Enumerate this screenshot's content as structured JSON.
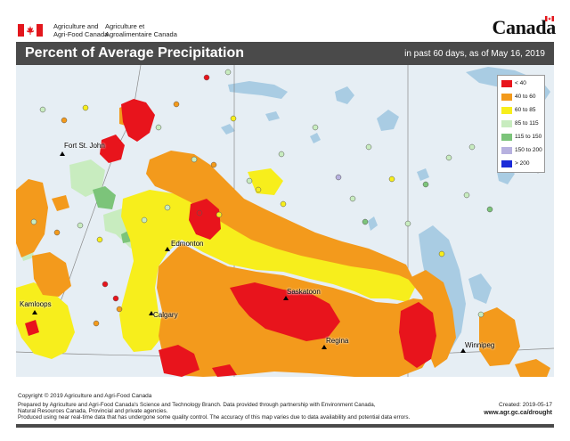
{
  "header": {
    "gov_en_line1": "Agriculture and",
    "gov_en_line2": "Agri-Food Canada",
    "gov_fr_line1": "Agriculture et",
    "gov_fr_line2": "Agroalimentaire Canada",
    "wordmark": "Canada"
  },
  "titlebar": {
    "title": "Percent of Average Precipitation",
    "subtitle": "in past 60 days, as of May 16, 2019"
  },
  "cities": {
    "fort_st_john": "Fort St. John",
    "edmonton": "Edmonton",
    "kamloops": "Kamloops",
    "calgary": "Calgary",
    "saskatoon": "Saskatoon",
    "regina": "Regina",
    "winnipeg": "Winnipeg"
  },
  "legend": {
    "items": [
      {
        "label": "< 40",
        "color": "#e8141c"
      },
      {
        "label": "40 to 60",
        "color": "#f39a1c"
      },
      {
        "label": "60 to 85",
        "color": "#f7ee1c"
      },
      {
        "label": "85 to 115",
        "color": "#c8ecbf"
      },
      {
        "label": "115 to 150",
        "color": "#7cc47a"
      },
      {
        "label": "150 to 200",
        "color": "#b7b1df"
      },
      {
        "label": "> 200",
        "color": "#1a2bd8"
      }
    ]
  },
  "colors": {
    "water": "#a9cce3",
    "land_background": "#e6eef4",
    "title_bar": "#4a4a4a"
  },
  "footer": {
    "copyright": "Copyright © 2019 Agriculture and Agri-Food Canada",
    "line1": "Prepared by Agriculture and Agri-Food Canada's Science and Technology Branch. Data provided through partnership with Environment Canada,",
    "line2": "Natural Resources Canada, Provincial and private agencies.",
    "line3": "Produced using near real-time data that has undergone some quality control. The accuracy of this map varies due to data availability and potential data errors.",
    "created": "Created: 2019-05-17",
    "url": "www.agr.gc.ca/drought"
  }
}
